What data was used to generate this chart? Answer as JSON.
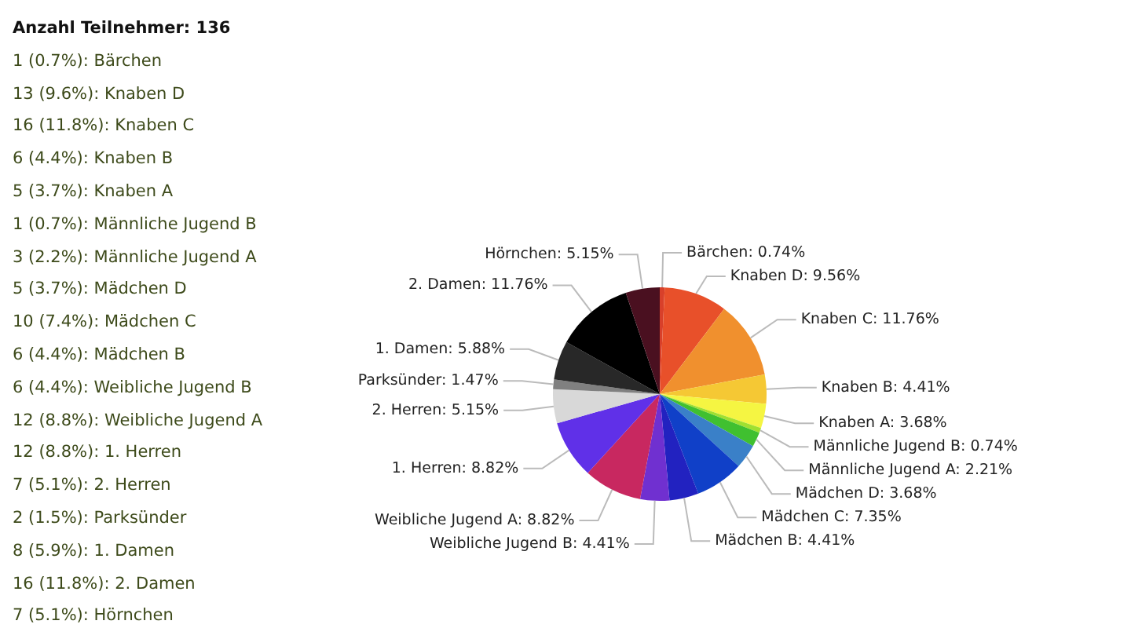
{
  "chart_data": {
    "type": "pie",
    "title": "Anzahl Teilnehmer: 136",
    "categories": [
      "Bärchen",
      "Knaben D",
      "Knaben C",
      "Knaben B",
      "Knaben A",
      "Männliche Jugend B",
      "Männliche Jugend A",
      "Mädchen D",
      "Mädchen C",
      "Mädchen B",
      "Weibliche Jugend B",
      "Weibliche Jugend A",
      "1. Herren",
      "2. Herren",
      "Parksünder",
      "1. Damen",
      "2. Damen",
      "Hörnchen"
    ],
    "values": [
      0.74,
      9.56,
      11.76,
      4.41,
      3.68,
      0.74,
      2.21,
      3.68,
      7.35,
      4.41,
      4.41,
      8.82,
      8.82,
      5.15,
      1.47,
      5.88,
      11.76,
      5.15
    ],
    "value_labels": [
      "0.74%",
      "9.56%",
      "11.76%",
      "4.41%",
      "3.68%",
      "0.74%",
      "2.21%",
      "3.68%",
      "7.35%",
      "4.41%",
      "4.41%",
      "8.82%",
      "8.82%",
      "5.15%",
      "1.47%",
      "5.88%",
      "11.76%",
      "5.15%"
    ],
    "colors": [
      "#d8402a",
      "#e8502a",
      "#f0902e",
      "#f5c834",
      "#f5f542",
      "#a0e030",
      "#40c030",
      "#3a80c8",
      "#1040c8",
      "#2222c0",
      "#7030d0",
      "#c82860",
      "#6030e8",
      "#d8d8d8",
      "#808080",
      "#282828",
      "#000000",
      "#4a1020"
    ],
    "annotations": [
      "1 (0.7%): Bärchen",
      "13 (9.6%): Knaben D",
      "16 (11.8%): Knaben C",
      "6 (4.4%): Knaben B",
      "5 (3.7%): Knaben A",
      "1 (0.7%): Männliche Jugend B",
      "3 (2.2%): Männliche Jugend A",
      "5 (3.7%): Mädchen D",
      "10 (7.4%): Mädchen C",
      "6 (4.4%): Mädchen B",
      "6 (4.4%): Weibliche Jugend B",
      "12 (8.8%): Weibliche Jugend A",
      "12 (8.8%): 1. Herren",
      "7 (5.1%): 2. Herren",
      "2 (1.5%): Parksünder",
      "8 (5.9%): 1. Damen",
      "16 (11.8%): 2. Damen",
      "7 (5.1%): Hörnchen"
    ]
  }
}
